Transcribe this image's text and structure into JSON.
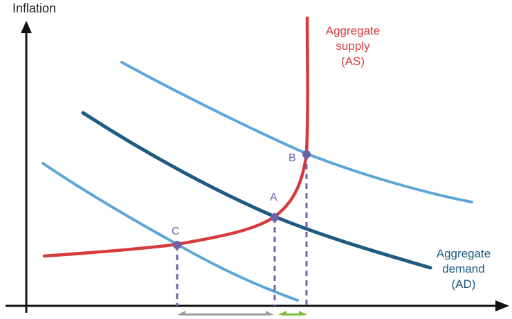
{
  "axis": {
    "y_label": "Inflation"
  },
  "curves": {
    "aggregate_supply": {
      "line1": "Aggregate",
      "line2": "supply",
      "line3": "(AS)",
      "color": "#d63a3a"
    },
    "aggregate_demand": {
      "line1": "Aggregate",
      "line2": "demand",
      "line3": "(AD)",
      "color": "#1f5a80"
    },
    "shifted_demand_color": "#5ea6d6"
  },
  "points": {
    "a": "A",
    "b": "B",
    "c": "C",
    "color": "#6c63a8"
  },
  "brackets": {
    "left_color": "#9e9e9e",
    "right_color": "#7dbd3c"
  }
}
